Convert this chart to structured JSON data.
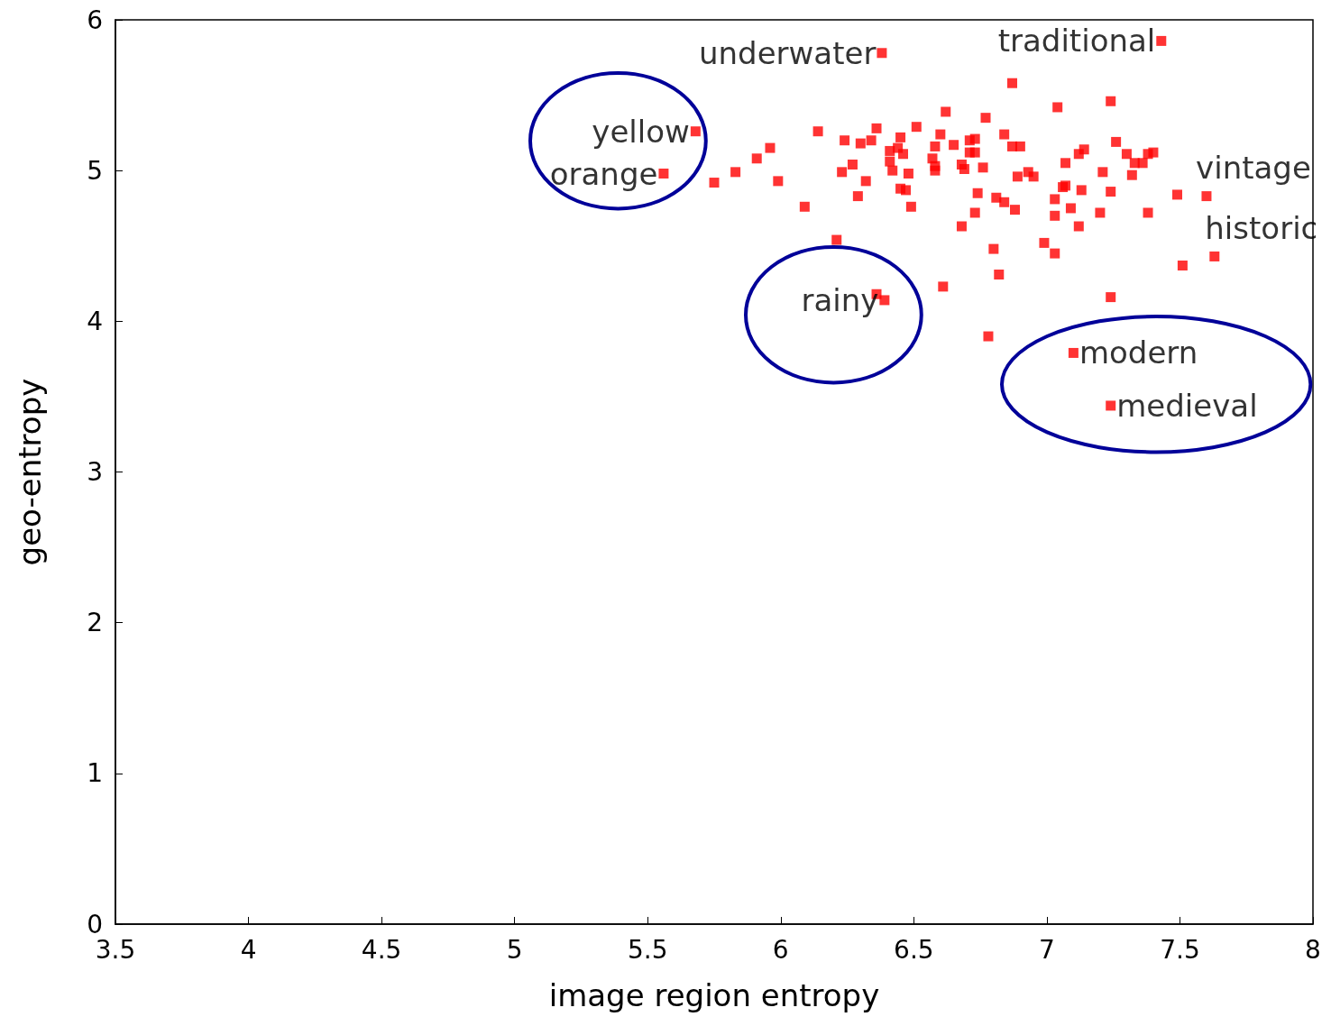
{
  "chart_data": {
    "type": "scatter",
    "xlabel": "image region entropy",
    "ylabel": "geo-entropy",
    "marker": "square",
    "grid": false,
    "xlim": [
      3.5,
      8
    ],
    "xticks": [
      3.5,
      4,
      4.5,
      5,
      5.5,
      6,
      6.5,
      7,
      7.5,
      8
    ],
    "ylim": [
      0,
      6
    ],
    "yticks": [
      0,
      1,
      2,
      3,
      4,
      5,
      6
    ],
    "series": [
      {
        "color": "#ff0000",
        "x": [
          5.68,
          5.56,
          6.38,
          7.43,
          7.6,
          7.63,
          7.1,
          7.24,
          6.36,
          6.39,
          5.75,
          5.83,
          5.91,
          5.96,
          5.99,
          6.09,
          6.14,
          6.21,
          6.23,
          6.24,
          6.27,
          6.29,
          6.3,
          6.32,
          6.34,
          6.36,
          6.41,
          6.41,
          6.42,
          6.44,
          6.45,
          6.45,
          6.46,
          6.47,
          6.48,
          6.49,
          6.51,
          6.57,
          6.58,
          6.58,
          6.6,
          6.58,
          6.62,
          6.61,
          6.65,
          6.68,
          6.68,
          6.69,
          6.71,
          6.71,
          6.73,
          6.73,
          6.73,
          6.74,
          6.76,
          6.77,
          6.78,
          6.8,
          6.81,
          6.82,
          6.84,
          6.84,
          6.87,
          6.87,
          6.88,
          6.89,
          6.9,
          6.93,
          6.95,
          6.99,
          7.03,
          7.03,
          7.03,
          7.04,
          7.06,
          7.07,
          7.07,
          7.09,
          7.12,
          7.13,
          7.14,
          7.12,
          7.2,
          7.21,
          7.24,
          7.24,
          7.26,
          7.24,
          7.3,
          7.32,
          7.33,
          7.36,
          7.38,
          7.38,
          7.4,
          7.49,
          7.51
        ],
        "values": [
          5.26,
          4.98,
          5.78,
          5.86,
          4.83,
          4.43,
          3.79,
          3.44,
          4.18,
          4.14,
          4.92,
          4.99,
          5.08,
          5.15,
          4.93,
          4.76,
          5.26,
          4.54,
          4.99,
          5.2,
          5.04,
          4.83,
          5.18,
          4.93,
          5.2,
          5.28,
          5.13,
          5.06,
          5,
          5.15,
          5.22,
          4.88,
          5.11,
          4.87,
          4.98,
          4.76,
          5.29,
          5.08,
          5,
          5.16,
          5.24,
          5.03,
          5.39,
          4.23,
          5.17,
          5.04,
          4.63,
          5.01,
          5.2,
          5.12,
          4.72,
          5.21,
          5.12,
          4.85,
          5.02,
          5.35,
          3.9,
          4.48,
          4.82,
          4.31,
          5.24,
          4.79,
          5.16,
          5.58,
          4.74,
          4.96,
          5.16,
          4.99,
          4.96,
          4.52,
          4.7,
          4.81,
          4.45,
          5.42,
          4.89,
          4.9,
          5.05,
          4.75,
          5.11,
          4.87,
          5.14,
          4.63,
          4.72,
          4.99,
          4.86,
          5.46,
          5.19,
          4.16,
          5.11,
          4.97,
          5.05,
          5.05,
          4.72,
          5.11,
          5.12,
          4.84,
          4.37
        ]
      }
    ],
    "annotations": [
      {
        "text": "yellow",
        "x": 5.68,
        "y": 5.26
      },
      {
        "text": "orange",
        "x": 5.56,
        "y": 4.98
      },
      {
        "text": "underwater",
        "x": 6.38,
        "y": 5.78
      },
      {
        "text": "traditional",
        "x": 7.43,
        "y": 5.86
      },
      {
        "text": "vintage",
        "x": 7.6,
        "y": 4.83
      },
      {
        "text": "historic",
        "x": 7.63,
        "y": 4.43
      },
      {
        "text": "modern",
        "x": 7.1,
        "y": 3.79
      },
      {
        "text": "medieval",
        "x": 7.24,
        "y": 3.44
      },
      {
        "text": "rainy",
        "x": 6.39,
        "y": 4.14
      }
    ]
  }
}
